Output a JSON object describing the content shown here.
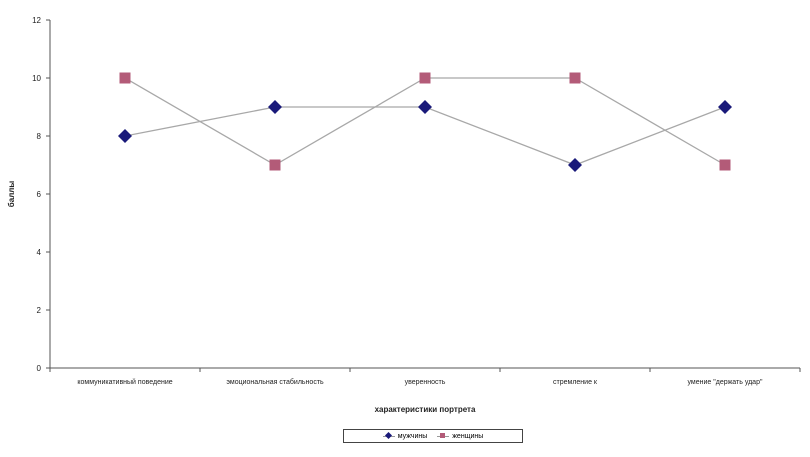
{
  "chart_data": {
    "type": "line",
    "title": "",
    "xlabel": "характеристики портрета",
    "ylabel": "баллы",
    "categories": [
      "коммуникативный поведение",
      "эмоциональная стабильность",
      "уверенность",
      "стремление к",
      "умение \"держать удар\""
    ],
    "yticks": [
      0,
      2,
      4,
      6,
      8,
      10,
      12
    ],
    "ylim": [
      0,
      12
    ],
    "grid": false,
    "legend_position": "bottom",
    "series": [
      {
        "name": "мужчины",
        "marker": "diamond",
        "color": "#1a1a7a",
        "values": [
          8,
          9,
          9,
          7,
          9
        ]
      },
      {
        "name": "женщины",
        "marker": "square",
        "color": "#b35b78",
        "values": [
          10,
          7,
          10,
          10,
          7
        ]
      }
    ],
    "line_color": "#a8a8a8"
  }
}
